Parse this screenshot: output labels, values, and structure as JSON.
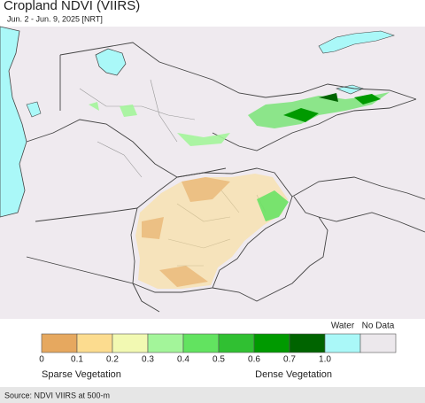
{
  "header": {
    "title": "Cropland NDVI (VIIRS)",
    "subtitle": "Jun. 2 - Jun. 9, 2025 [NRT]"
  },
  "legend": {
    "scale": [
      {
        "color": "#e6a85f"
      },
      {
        "color": "#fcdc8f"
      },
      {
        "color": "#f2f9b2"
      },
      {
        "color": "#a3f59a"
      },
      {
        "color": "#62e360"
      },
      {
        "color": "#30c032"
      },
      {
        "color": "#009a00"
      },
      {
        "color": "#006400"
      }
    ],
    "ticks": [
      "0",
      "0.1",
      "0.2",
      "0.3",
      "0.4",
      "0.5",
      "0.6",
      "0.7",
      "1.0"
    ],
    "water": {
      "label": "Water",
      "color": "#aaf8f8"
    },
    "no_data": {
      "label": "No Data",
      "color": "#ece8ec"
    },
    "low_label": "Sparse Vegetation",
    "high_label": "Dense Vegetation"
  },
  "footer": {
    "source": "Source: NDVI VIIRS at 500-m"
  }
}
